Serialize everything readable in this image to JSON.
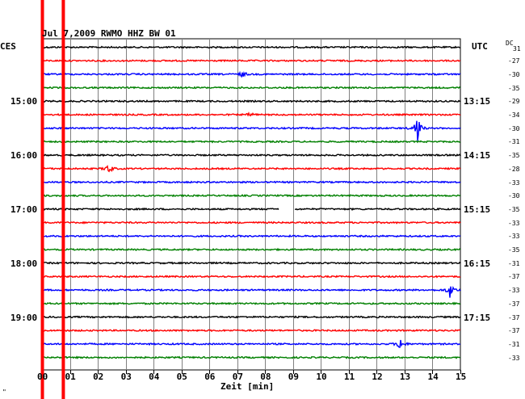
{
  "header": {
    "title": "Jul 7,2009   RWMO HHZ BW 01",
    "left_zone": "CES",
    "right_zone": "UTC",
    "dc_label": "DC",
    "x_axis_label": "Zeit [min]",
    "corner_mark": "\""
  },
  "chart_data": {
    "type": "line",
    "title": "Jul 7,2009   RWMO HHZ BW 01",
    "xlabel": "Zeit [min]",
    "x_range": [
      0,
      15
    ],
    "x_ticks": [
      "00",
      "01",
      "02",
      "03",
      "04",
      "05",
      "06",
      "07",
      "08",
      "09",
      "10",
      "11",
      "12",
      "13",
      "14",
      "15"
    ],
    "grid": true,
    "left_hour_labels": [
      {
        "row": 4,
        "text": "15:00"
      },
      {
        "row": 8,
        "text": "16:00"
      },
      {
        "row": 12,
        "text": "17:00"
      },
      {
        "row": 16,
        "text": "18:00"
      },
      {
        "row": 20,
        "text": "19:00"
      }
    ],
    "right_hour_labels": [
      {
        "row": 4,
        "text": "13:15"
      },
      {
        "row": 8,
        "text": "14:15"
      },
      {
        "row": 12,
        "text": "15:15"
      },
      {
        "row": 16,
        "text": "16:15"
      },
      {
        "row": 20,
        "text": "17:15"
      }
    ],
    "trace_colors": [
      "#000000",
      "#ff0000",
      "#0000ff",
      "#008000"
    ],
    "traces": [
      {
        "dc": "31"
      },
      {
        "dc": "-27"
      },
      {
        "dc": "-30"
      },
      {
        "dc": "-35"
      },
      {
        "dc": "-29"
      },
      {
        "dc": "-34"
      },
      {
        "dc": "-30"
      },
      {
        "dc": "-31"
      },
      {
        "dc": "-35"
      },
      {
        "dc": "-28"
      },
      {
        "dc": "-33"
      },
      {
        "dc": "-30"
      },
      {
        "dc": "-35"
      },
      {
        "dc": "-33"
      },
      {
        "dc": "-33"
      },
      {
        "dc": "-35"
      },
      {
        "dc": "-31"
      },
      {
        "dc": "-37"
      },
      {
        "dc": "-33"
      },
      {
        "dc": "-37"
      },
      {
        "dc": "-37"
      },
      {
        "dc": "-37"
      },
      {
        "dc": "-31"
      },
      {
        "dc": "-33"
      }
    ],
    "events": [
      {
        "row": 2,
        "minute": 7.2,
        "amplitude": 4
      },
      {
        "row": 5,
        "minute": 7.5,
        "amplitude": 3
      },
      {
        "row": 6,
        "minute": 13.45,
        "amplitude": 20
      },
      {
        "row": 9,
        "minute": 2.4,
        "amplitude": 7
      },
      {
        "row": 18,
        "minute": 14.65,
        "amplitude": 12
      },
      {
        "row": 22,
        "minute": 12.85,
        "amplitude": 9
      }
    ],
    "gaps": [
      {
        "row": 12,
        "from": 8.5,
        "to": 9.05
      }
    ],
    "markers": [
      {
        "minute": 0.0,
        "color": "#ff0000"
      },
      {
        "minute": 0.75,
        "color": "#ff0000"
      }
    ]
  }
}
